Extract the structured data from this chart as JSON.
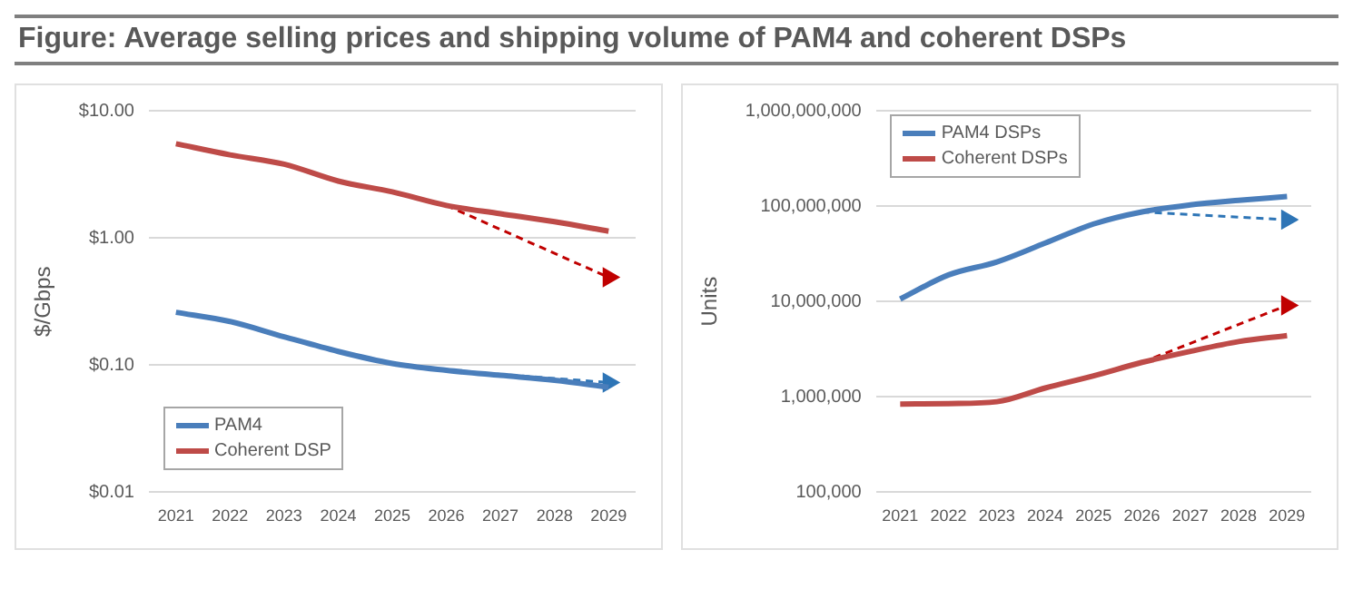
{
  "chart_data": [
    {
      "type": "line",
      "title": "Figure: Average selling prices and shipping volume of PAM4 and coherent DSPs",
      "ylabel": "$/Gbps",
      "categories": [
        "2021",
        "2022",
        "2023",
        "2024",
        "2025",
        "2026",
        "2027",
        "2028",
        "2029"
      ],
      "log": "y",
      "ylim": [
        0.01,
        10
      ],
      "yticks": [
        {
          "value": 0.01,
          "label": "$0.01"
        },
        {
          "value": 0.1,
          "label": "$0.10"
        },
        {
          "value": 1,
          "label": "$1.00"
        },
        {
          "value": 10,
          "label": "$10.00"
        }
      ],
      "grid": "y",
      "legend": "bottom left",
      "series": [
        {
          "name": "PAM4",
          "color": "#4a7ebb",
          "values": [
            0.26,
            0.22,
            0.167,
            0.128,
            0.103,
            0.091,
            0.083,
            0.076,
            0.067
          ]
        },
        {
          "name": "Coherent DSP",
          "color": "#be4b48",
          "values": [
            5.5,
            4.5,
            3.8,
            2.8,
            2.3,
            1.8,
            1.55,
            1.34,
            1.13
          ]
        },
        {
          "color": "#2e75b6",
          "line_style": "dashed",
          "marker": "triangle",
          "values": [
            null,
            null,
            null,
            null,
            null,
            0.091,
            null,
            null,
            0.073
          ]
        },
        {
          "color": "#c00000",
          "line_style": "dashed",
          "marker": "triangle",
          "values": [
            null,
            null,
            null,
            null,
            null,
            1.8,
            null,
            null,
            0.49
          ]
        }
      ]
    },
    {
      "type": "line",
      "ylabel": "Units",
      "categories": [
        "2021",
        "2022",
        "2023",
        "2024",
        "2025",
        "2026",
        "2027",
        "2028",
        "2029"
      ],
      "log": "y",
      "ylim": [
        100000,
        1000000000
      ],
      "yticks": [
        {
          "value": 100000,
          "label": "100,000"
        },
        {
          "value": 1000000,
          "label": "1,000,000"
        },
        {
          "value": 10000000,
          "label": "10,000,000"
        },
        {
          "value": 100000000,
          "label": "100,000,000"
        },
        {
          "value": 1000000000,
          "label": "1,000,000,000"
        }
      ],
      "grid": "y",
      "legend": "top left",
      "series": [
        {
          "name": "PAM4 DSPs",
          "color": "#4a7ebb",
          "values": [
            10600000,
            19000000,
            26000000,
            41000000,
            65000000,
            87000000,
            103000000,
            115000000,
            126000000
          ]
        },
        {
          "name": "Coherent DSPs",
          "color": "#be4b48",
          "values": [
            840000,
            850000,
            890000,
            1240000,
            1660000,
            2300000,
            3000000,
            3800000,
            4400000
          ]
        },
        {
          "color": "#2e75b6",
          "line_style": "dashed",
          "marker": "triangle",
          "values": [
            null,
            null,
            null,
            null,
            null,
            87000000,
            null,
            null,
            72000000
          ]
        },
        {
          "color": "#c00000",
          "line_style": "dashed",
          "marker": "triangle",
          "values": [
            null,
            null,
            null,
            null,
            null,
            2300000,
            null,
            null,
            9100000
          ]
        }
      ]
    }
  ]
}
